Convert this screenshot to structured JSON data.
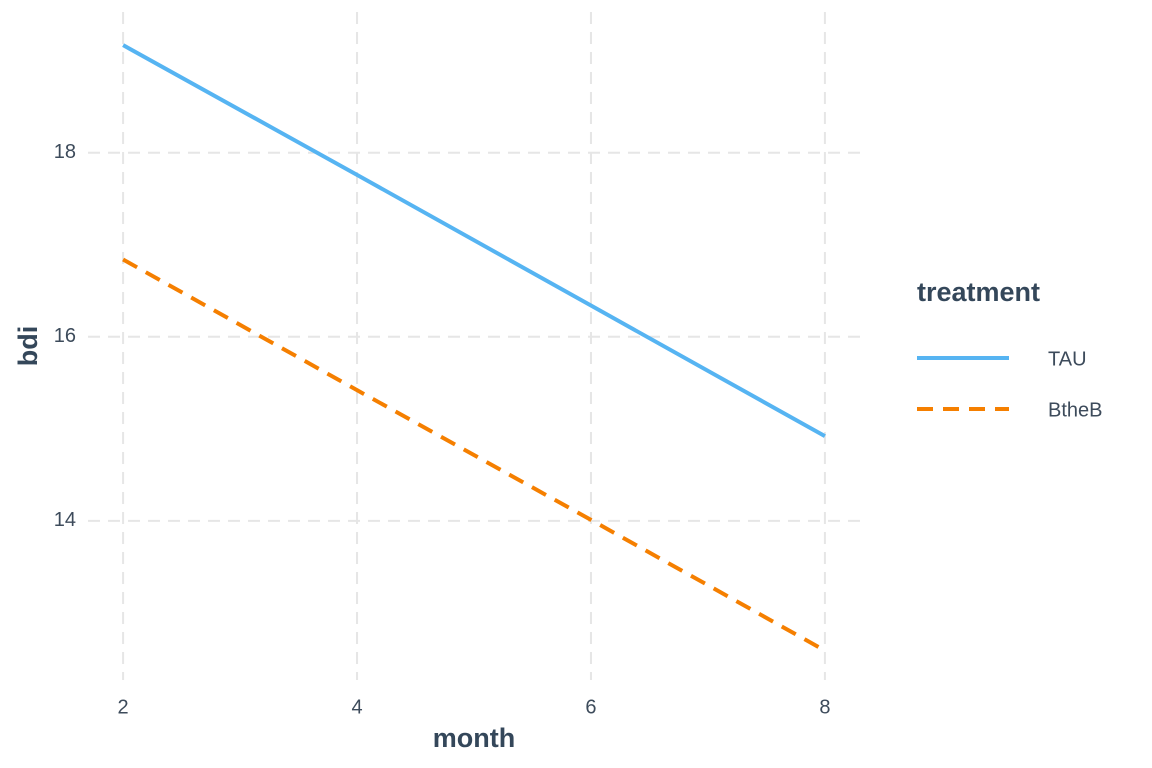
{
  "chart_data": {
    "type": "line",
    "x_label": "month",
    "y_label": "bdi",
    "x": [
      2,
      4,
      6,
      8
    ],
    "series": [
      {
        "name": "TAU",
        "color": "#56b4f2",
        "linestyle": "solid",
        "values": [
          19.17,
          17.76,
          16.34,
          14.92
        ]
      },
      {
        "name": "BtheB",
        "color": "#f57f00",
        "linestyle": "dashed",
        "values": [
          16.84,
          15.42,
          14.01,
          12.59
        ]
      }
    ],
    "xlim": [
      1.7,
      8.3
    ],
    "xticks": [
      2,
      4,
      6,
      8
    ],
    "ylim": [
      12.27,
      19.53
    ],
    "yticks": [
      14,
      16,
      18
    ],
    "grid": true,
    "legend": {
      "title": "treatment",
      "position": "right"
    }
  }
}
